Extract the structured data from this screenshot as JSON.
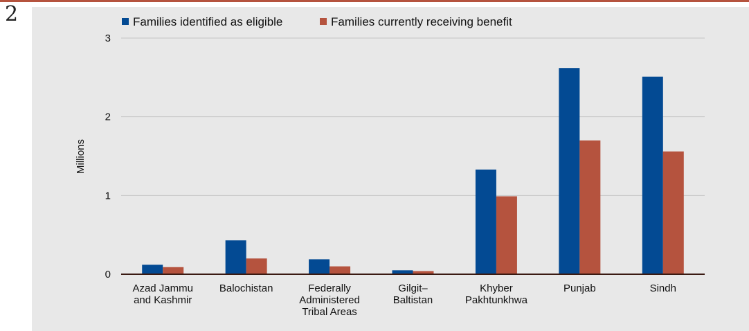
{
  "figure": {
    "number": "2"
  },
  "chart_data": {
    "type": "bar",
    "title": "",
    "xlabel": "",
    "ylabel": "Millions",
    "ylim": [
      0,
      3
    ],
    "yticks": [
      0,
      1,
      2,
      3
    ],
    "grid": true,
    "legend_position": "top",
    "categories": [
      [
        "Azad Jammu",
        "and Kashmir"
      ],
      [
        "Balochistan"
      ],
      [
        "Federally",
        "Administered",
        "Tribal Areas"
      ],
      [
        "Gilgit–",
        "Baltistan"
      ],
      [
        "Khyber",
        "Pakhtunkhwa"
      ],
      [
        "Punjab"
      ],
      [
        "Sindh"
      ]
    ],
    "series": [
      {
        "name": "Families identified as eligible",
        "color": "#034a93",
        "values": [
          0.12,
          0.43,
          0.19,
          0.05,
          1.33,
          2.62,
          2.51
        ]
      },
      {
        "name": "Families currently receiving benefit",
        "color": "#b5533e",
        "values": [
          0.09,
          0.2,
          0.1,
          0.04,
          0.99,
          1.7,
          1.56
        ]
      }
    ]
  }
}
